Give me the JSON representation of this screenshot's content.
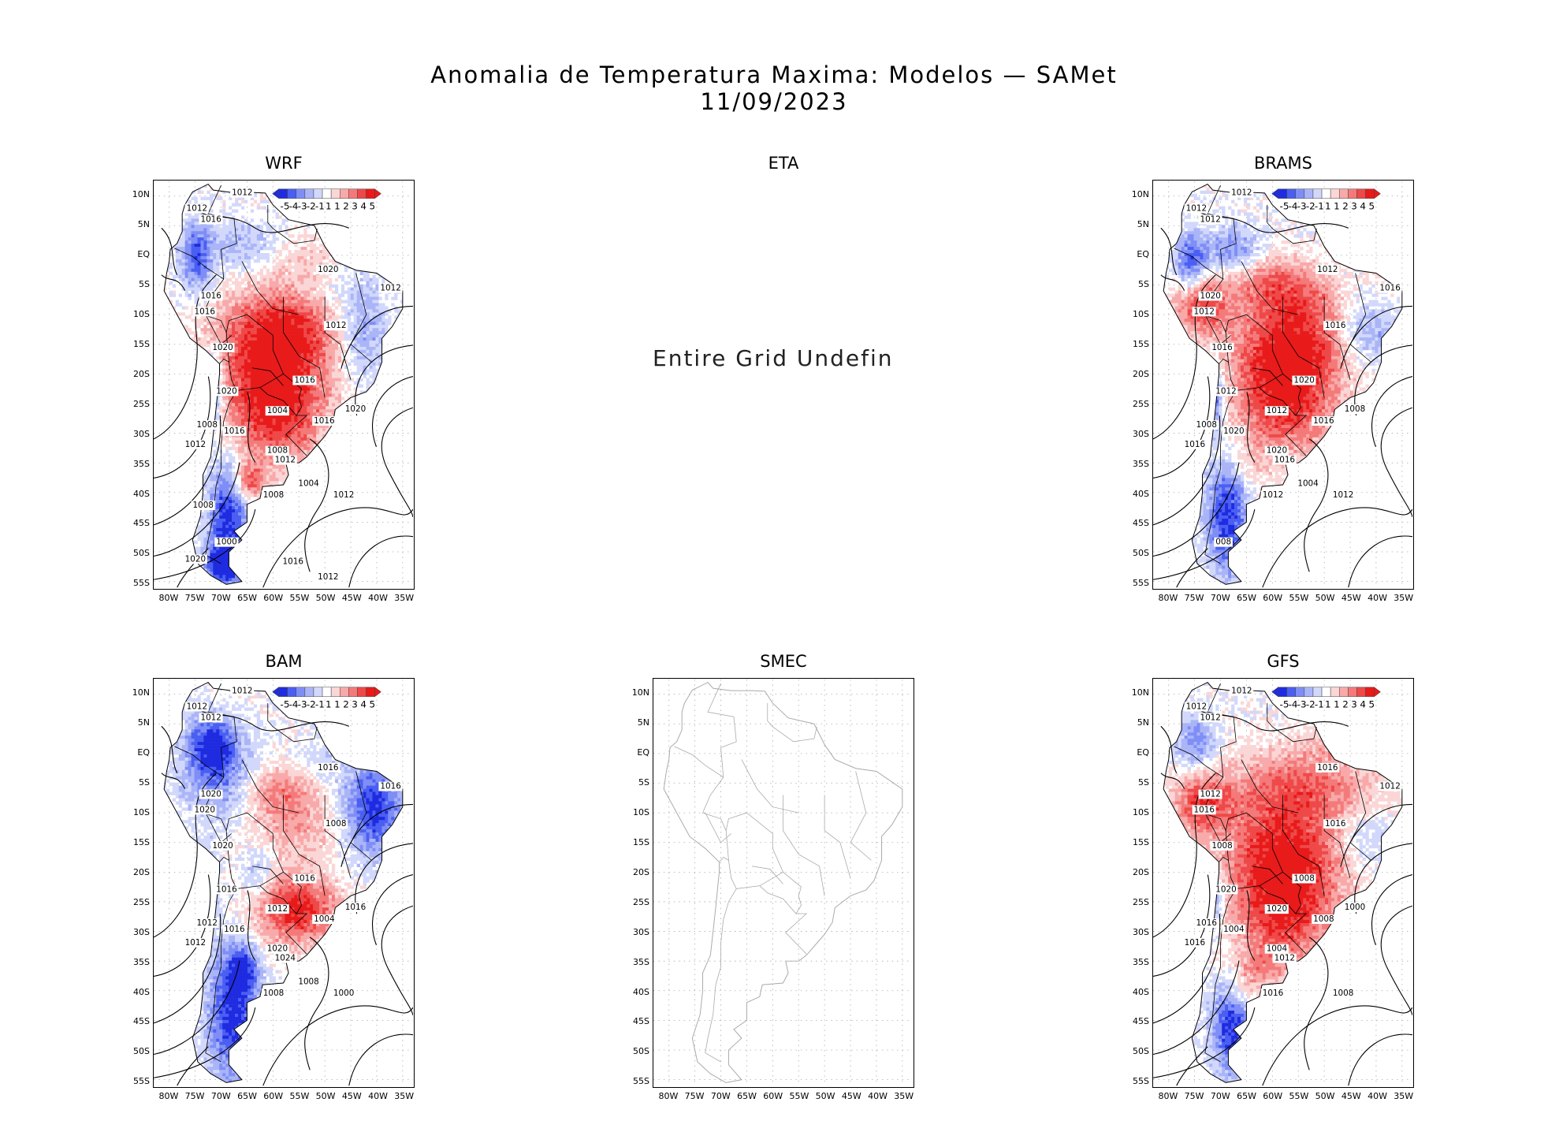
{
  "title": "Anomalia de Temperatura Maxima: Modelos — SAMet",
  "date": "11/09/2023",
  "y_ticks": [
    "10N",
    "5N",
    "EQ",
    "5S",
    "10S",
    "15S",
    "20S",
    "25S",
    "30S",
    "35S",
    "40S",
    "45S",
    "50S",
    "55S"
  ],
  "x_ticks": [
    "80W",
    "75W",
    "70W",
    "65W",
    "60W",
    "55W",
    "50W",
    "45W",
    "40W",
    "35W"
  ],
  "colorbar_labels": [
    "-5",
    "-4",
    "-3",
    "-2",
    "-1",
    "1",
    "1",
    "2",
    "3",
    "4",
    "5"
  ],
  "colorbar_colors": [
    "#1f2be0",
    "#4a5ff2",
    "#7f8ef6",
    "#aab5f8",
    "#d2d8fb",
    "#ffffff",
    "#fbd6d6",
    "#f8a9a9",
    "#f47a7a",
    "#ef4848",
    "#e81a1a"
  ],
  "panels": [
    {
      "name": "WRF",
      "map": true,
      "isobars": [
        "1012",
        "1012",
        "1016",
        "1012",
        "1020",
        "1016",
        "1016",
        "1012",
        "1020",
        "1020",
        "1008",
        "1016",
        "1012",
        "1016",
        "1004",
        "1012",
        "1008",
        "1008",
        "1016",
        "1020",
        "1012",
        "1004",
        "1000",
        "1008",
        "1012",
        "1016",
        "1020"
      ]
    },
    {
      "name": "ETA",
      "map": false,
      "message": "Entire Grid Undefined"
    },
    {
      "name": "BRAMS",
      "map": true,
      "isobars": [
        "1012",
        "1012",
        "1012",
        "1016",
        "1012",
        "1020",
        "1012",
        "1016",
        "1016",
        "1012",
        "1008",
        "1020",
        "1016",
        "1020",
        "1012",
        "1016",
        "1012",
        "1020",
        "1016",
        "1008",
        "1012",
        "1004",
        "008"
      ]
    },
    {
      "name": "BAM",
      "map": true,
      "isobars": [
        "1012",
        "1012",
        "1012",
        "1016",
        "1016",
        "1020",
        "1020",
        "1008",
        "1020",
        "1016",
        "1012",
        "1016",
        "1012",
        "1016",
        "1012",
        "1024",
        "1008",
        "1020",
        "1004",
        "1016",
        "1000",
        "1008"
      ]
    },
    {
      "name": "SMEC",
      "map": false,
      "outline_only": true
    },
    {
      "name": "GFS",
      "map": true,
      "isobars": [
        "1012",
        "1012",
        "1012",
        "1012",
        "1016",
        "1012",
        "1016",
        "1016",
        "1008",
        "1020",
        "1016",
        "1008",
        "1016",
        "1004",
        "1020",
        "1012",
        "1016",
        "1004",
        "1008",
        "1000",
        "1008"
      ]
    }
  ]
}
